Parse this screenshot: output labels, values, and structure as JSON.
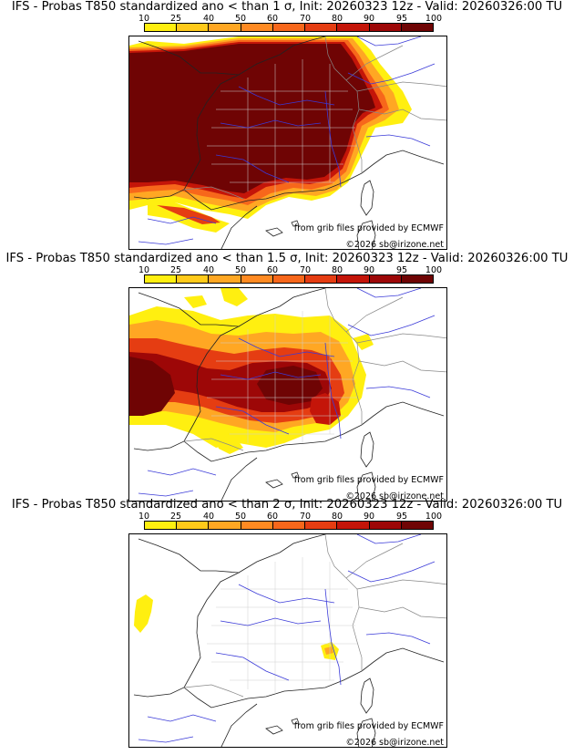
{
  "legend": {
    "ticks": [
      "10",
      "25",
      "40",
      "50",
      "60",
      "70",
      "80",
      "90",
      "95",
      "100"
    ],
    "colors": [
      "#ffef10",
      "#ffca1a",
      "#ffa723",
      "#ff8a22",
      "#f7671b",
      "#e53d12",
      "#c41509",
      "#9d0707",
      "#6f0404"
    ]
  },
  "panels": [
    {
      "title": "IFS - Probas T850  standardized ano < than 1 σ, Init: 20260323 12z - Valid: 20260326:00 TU",
      "credit_source": "from grib files provided by ECMWF",
      "credit_copyright": "©2026 sb@irizone.net"
    },
    {
      "title": "IFS - Probas T850  standardized ano < than 1.5 σ, Init: 20260323 12z - Valid: 20260326:00 TU",
      "credit_source": "from grib files provided by ECMWF",
      "credit_copyright": "©2026 sb@irizone.net"
    },
    {
      "title": "IFS - Probas T850  standardized ano < than 2 σ, Init: 20260323 12z - Valid: 20260326:00 TU",
      "credit_source": "from grib files provided by ECMWF",
      "credit_copyright": "©2026 sb@irizone.net"
    }
  ]
}
